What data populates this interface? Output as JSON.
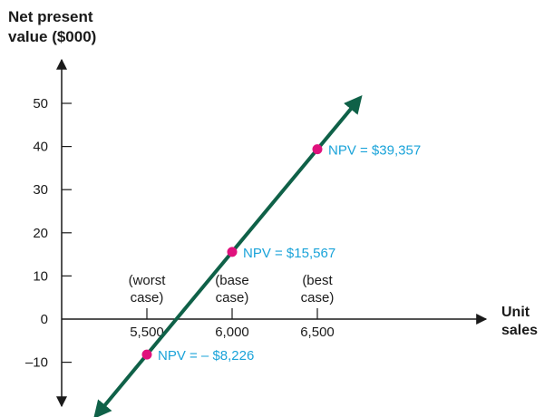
{
  "chart_data": {
    "type": "line",
    "ylabel_lines": [
      "Net present",
      "value ($000)"
    ],
    "xlabel_lines": [
      "Unit",
      "sales"
    ],
    "y_ticks": [
      -10,
      0,
      10,
      20,
      30,
      40,
      50
    ],
    "x_ticks": [
      {
        "value": 5500,
        "label": "5,500",
        "case_lines": [
          "(worst",
          "case)"
        ]
      },
      {
        "value": 6000,
        "label": "6,000",
        "case_lines": [
          "(base",
          "case)"
        ]
      },
      {
        "value": 6500,
        "label": "6,500",
        "case_lines": [
          "(best",
          "case)"
        ]
      }
    ],
    "series": [
      {
        "x": [
          5500,
          6000,
          6500
        ],
        "y": [
          -8.226,
          15.567,
          39.357
        ],
        "point_labels": [
          "NPV = – $8,226",
          "NPV = $15,567",
          "NPV = $39,357"
        ]
      }
    ],
    "colors": {
      "line": "#0f6148",
      "point": "#e0117d",
      "annotation": "#1aa3d9",
      "axis": "#1a1a1a"
    }
  }
}
